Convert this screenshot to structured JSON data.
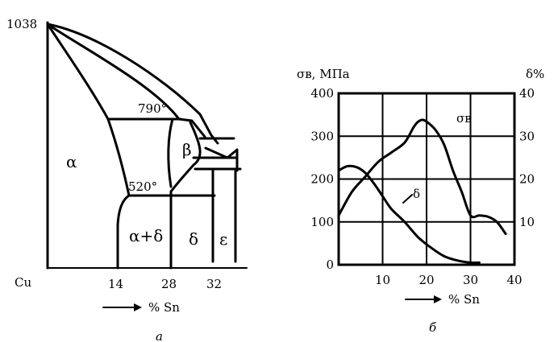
{
  "phase_diagram": {
    "temperature_label": "1038",
    "eutectoid_upper_label": "790°",
    "eutectoid_lower_label": "520°",
    "phases": [
      "α",
      "β",
      "α+δ",
      "δ",
      "ε"
    ],
    "origin_label": "Cu",
    "x_ticks": [
      "14",
      "28",
      "32"
    ],
    "x_axis_label": "% Sn",
    "caption": "а"
  },
  "chart_data": {
    "type": "line",
    "xlabel": "% Sn",
    "ylabel_left": "σв, МПа",
    "ylabel_right": "δ%",
    "xlim": [
      0,
      40
    ],
    "ylim_left": [
      0,
      400
    ],
    "ylim_right": [
      0,
      40
    ],
    "x_ticks": [
      0,
      10,
      20,
      30,
      40
    ],
    "y_ticks_left": [
      0,
      100,
      200,
      300,
      400
    ],
    "y_ticks_right": [
      10,
      20,
      30,
      40
    ],
    "grid": true,
    "series": [
      {
        "name": "σв",
        "axis": "left",
        "x": [
          0,
          3,
          6,
          9,
          12,
          15,
          17,
          18,
          19,
          20,
          22,
          24,
          26,
          28,
          30,
          32,
          34,
          36,
          38
        ],
        "values": [
          115,
          170,
          205,
          240,
          262,
          285,
          320,
          333,
          338,
          334,
          315,
          280,
          220,
          170,
          115,
          115,
          112,
          100,
          72
        ]
      },
      {
        "name": "δ",
        "axis": "right",
        "x": [
          0,
          2,
          4,
          6,
          8,
          10,
          12,
          15,
          18,
          21,
          24,
          27,
          30,
          32
        ],
        "values": [
          22,
          23,
          22.8,
          21.5,
          19,
          16,
          13,
          10,
          6.5,
          4,
          2,
          1,
          0.5,
          0.5
        ]
      }
    ],
    "caption": "б"
  }
}
